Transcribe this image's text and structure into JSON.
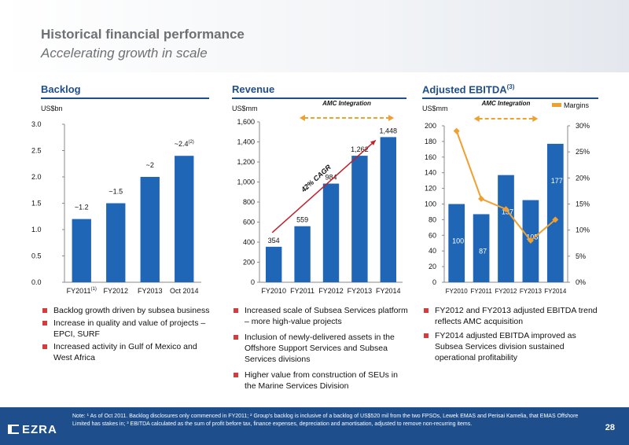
{
  "page": {
    "title": "Historical financial performance",
    "subtitle": "Accelerating growth in scale",
    "page_number": "28",
    "logo_text": "EZRA",
    "footnote": "Note: ¹ As of Oct 2011. Backlog disclosures only commenced in FY2011; ² Group's backlog is inclusive of a backlog of US$520 mil from the two FPSOs, Lewek EMAS and Perisai Kamelia, that EMAS Offshore Limited has stakes in; ³ EBITDA calculated as the sum of profit before tax, finance expenses, depreciation and amortisation, adjusted to remove non-recurring items."
  },
  "panels": {
    "backlog": {
      "title": "Backlog",
      "unit": "US$bn",
      "bullets": [
        "Backlog growth driven by subsea business",
        "Increase in quality and value of projects – EPCI, SURF",
        "Increased activity in Gulf of Mexico and West Africa"
      ]
    },
    "revenue": {
      "title": "Revenue",
      "unit": "US$mm",
      "bullets": [
        "Increased scale of Subsea Services platform – more high-value projects",
        "Inclusion of newly-delivered assets in the Offshore Support Services and Subsea Services divisions",
        "Higher value from construction of SEUs in the Marine Services Division"
      ]
    },
    "ebitda": {
      "title": "Adjusted EBITDA",
      "title_sup": "(3)",
      "unit": "US$mm",
      "bullets": [
        "FY2012 and FY2013 adjusted EBITDA trend reflects AMC acquisition",
        "FY2014 adjusted EBITDA improved as Subsea Services division sustained operational profitability"
      ]
    }
  },
  "chart_data": [
    {
      "type": "bar",
      "categories": [
        "FY2011",
        "FY2012",
        "FY2013",
        "Oct 2014"
      ],
      "category_sups": [
        "(1)",
        "",
        "",
        ""
      ],
      "values": [
        1.2,
        1.5,
        2.0,
        2.4
      ],
      "data_labels": [
        "~1.2",
        "~1.5",
        "~2",
        "~2.4"
      ],
      "data_label_sups": [
        "",
        "",
        "",
        "(2)"
      ],
      "ylim": [
        0,
        3.0
      ],
      "yticks": [
        0,
        0.5,
        1.0,
        1.5,
        2.0,
        2.5,
        3.0
      ],
      "ytick_labels": [
        "0.0",
        "0.5",
        "1.0",
        "1.5",
        "2.0",
        "2.5",
        "3.0"
      ],
      "color": "#1f66b6"
    },
    {
      "type": "bar",
      "categories": [
        "FY2010",
        "FY2011",
        "FY2012",
        "FY2013",
        "FY2014"
      ],
      "values": [
        354,
        559,
        984,
        1262,
        1448
      ],
      "data_labels": [
        "354",
        "559",
        "984",
        "1,262",
        "1,448"
      ],
      "ylim": [
        0,
        1600
      ],
      "yticks": [
        0,
        200,
        400,
        600,
        800,
        1000,
        1200,
        1400,
        1600
      ],
      "ytick_labels": [
        "0",
        "200",
        "400",
        "600",
        "800",
        "1,000",
        "1,200",
        "1,400",
        "1,600"
      ],
      "annotations": {
        "cagr": "42% CAGR",
        "integration": "AMC Integration"
      },
      "color": "#1f66b6",
      "arrow_color": "#c0202a",
      "integration_color": "#f0a030"
    },
    {
      "type": "bar",
      "categories": [
        "FY2010",
        "FY2011",
        "FY2012",
        "FY2013",
        "FY2014"
      ],
      "values": [
        100,
        87,
        137,
        105,
        177
      ],
      "data_labels": [
        "100",
        "87",
        "137",
        "105",
        "177"
      ],
      "ylim": [
        0,
        200
      ],
      "yticks": [
        0,
        20,
        40,
        60,
        80,
        100,
        120,
        140,
        160,
        180,
        200
      ],
      "secondary": {
        "name": "Margins",
        "type": "line",
        "values": [
          29,
          16,
          14,
          8,
          12
        ],
        "ylim": [
          0,
          30
        ],
        "yticks": [
          0,
          5,
          10,
          15,
          20,
          25,
          30
        ],
        "ytick_labels": [
          "0%",
          "5%",
          "10%",
          "15%",
          "20%",
          "25%",
          "30%"
        ],
        "color": "#f0a030"
      },
      "annotations": {
        "integration": "AMC Integration"
      },
      "color": "#1f66b6",
      "integration_color": "#f0a030"
    }
  ]
}
